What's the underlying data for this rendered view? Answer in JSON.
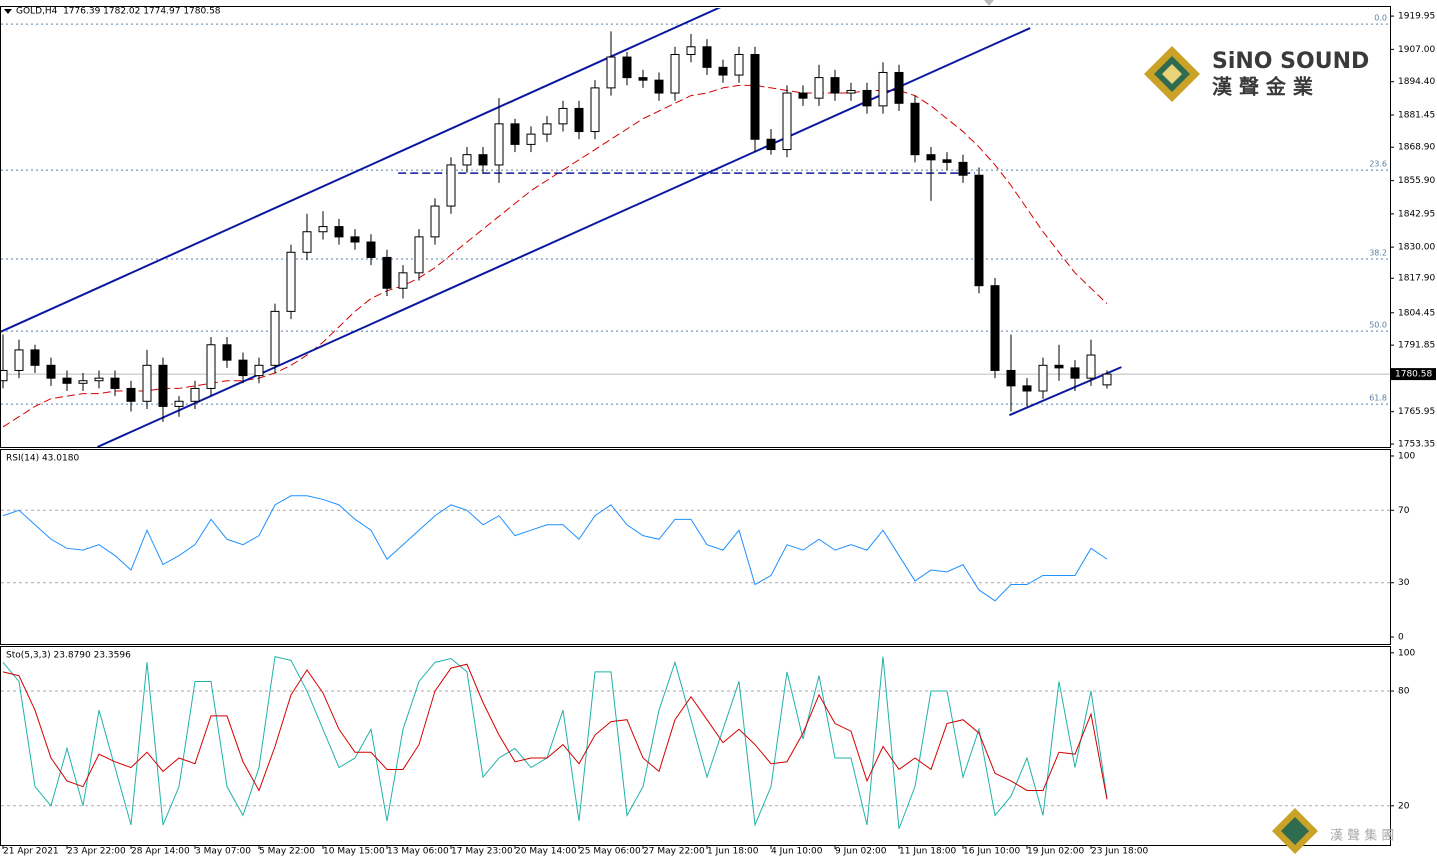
{
  "chart_data": [
    {
      "type": "candlestick",
      "title": "GOLD,H4  1776.39 1782.02 1774.97 1780.58",
      "categories": [
        "21 Apr 2021",
        null,
        null,
        null,
        "23 Apr 22:00",
        null,
        null,
        null,
        "28 Apr 14:00",
        null,
        null,
        null,
        "3 May 07:00",
        null,
        null,
        null,
        "5 May 22:00",
        null,
        null,
        null,
        "10 May 15:00",
        null,
        null,
        null,
        "13 May 06:00",
        null,
        null,
        null,
        "17 May 23:00",
        null,
        null,
        null,
        "20 May 14:00",
        null,
        null,
        null,
        "25 May 06:00",
        null,
        null,
        null,
        "27 May 22:00",
        null,
        null,
        null,
        "1 Jun 18:00",
        null,
        null,
        null,
        "4 Jun 10:00",
        null,
        null,
        null,
        "9 Jun 02:00",
        null,
        null,
        null,
        "11 Jun 18:00",
        null,
        null,
        null,
        "16 Jun 10:00",
        null,
        null,
        null,
        "19 Jun 02:00",
        null,
        null,
        null,
        "23 Jun 18:00",
        null
      ],
      "open": [
        1778,
        1782,
        1790,
        1784,
        1779,
        1777,
        1778,
        1779,
        1775,
        1770,
        1784,
        1768,
        1770,
        1775,
        1792,
        1786,
        1780,
        1784,
        1805,
        1828,
        1836,
        1838,
        1834,
        1832,
        1826,
        1814,
        1820,
        1834,
        1846,
        1862,
        1866,
        1862,
        1878,
        1870,
        1874,
        1878,
        1884,
        1875,
        1892,
        1904,
        1896,
        1895,
        1890,
        1905,
        1908,
        1900,
        1897,
        1905,
        1872,
        1868,
        1890,
        1888,
        1896,
        1890,
        1891,
        1885,
        1898,
        1886,
        1866,
        1864,
        1863,
        1858,
        1815,
        1782,
        1776,
        1774,
        1784,
        1783,
        1779,
        1776.39
      ],
      "high": [
        1796,
        1794,
        1792,
        1787,
        1782,
        1781,
        1782,
        1782,
        1778,
        1790,
        1787,
        1772,
        1778,
        1795,
        1795,
        1789,
        1787,
        1808,
        1831,
        1843,
        1844,
        1841,
        1837,
        1835,
        1829,
        1823,
        1837,
        1849,
        1865,
        1869,
        1869,
        1888,
        1880,
        1877,
        1881,
        1887,
        1887,
        1895,
        1914,
        1906,
        1899,
        1898,
        1908,
        1913,
        1911,
        1903,
        1908,
        1908,
        1876,
        1893,
        1893,
        1901,
        1899,
        1894,
        1894,
        1902,
        1901,
        1889,
        1869,
        1867,
        1866,
        1861,
        1818,
        1796,
        1779,
        1787,
        1792,
        1786,
        1794,
        1782.02
      ],
      "low": [
        1775,
        1779,
        1781,
        1776,
        1774,
        1774,
        1775,
        1772,
        1766,
        1767,
        1762,
        1764,
        1767,
        1772,
        1783,
        1777,
        1777,
        1781,
        1802,
        1825,
        1833,
        1831,
        1829,
        1823,
        1811,
        1810,
        1817,
        1831,
        1843,
        1859,
        1859,
        1855,
        1867,
        1867,
        1871,
        1875,
        1872,
        1872,
        1889,
        1893,
        1892,
        1887,
        1887,
        1902,
        1897,
        1894,
        1894,
        1867,
        1866,
        1865,
        1885,
        1885,
        1887,
        1887,
        1882,
        1882,
        1883,
        1863,
        1848,
        1860,
        1855,
        1812,
        1779,
        1766,
        1768,
        1771,
        1778,
        1774,
        1776,
        1774.97
      ],
      "close": [
        1782,
        1790,
        1784,
        1779,
        1777,
        1778,
        1779,
        1775,
        1770,
        1784,
        1768,
        1770,
        1775,
        1792,
        1786,
        1780,
        1784,
        1805,
        1828,
        1836,
        1838,
        1834,
        1832,
        1826,
        1814,
        1820,
        1834,
        1846,
        1862,
        1866,
        1862,
        1878,
        1870,
        1874,
        1878,
        1884,
        1875,
        1892,
        1904,
        1896,
        1895,
        1890,
        1905,
        1908,
        1900,
        1897,
        1905,
        1872,
        1868,
        1890,
        1888,
        1896,
        1890,
        1891,
        1885,
        1898,
        1886,
        1866,
        1864,
        1863,
        1858,
        1815,
        1782,
        1776,
        1774,
        1784,
        1783,
        1779,
        1788,
        1780.58
      ],
      "moving_average": {
        "color": "#d40000",
        "values": [
          1760,
          1764,
          1768,
          1771,
          1772,
          1773,
          1773,
          1774,
          1774,
          1774,
          1775,
          1775,
          1776,
          1777,
          1778,
          1778,
          1779,
          1781,
          1784,
          1788,
          1793,
          1799,
          1805,
          1810,
          1813,
          1815,
          1818,
          1822,
          1827,
          1832,
          1837,
          1842,
          1847,
          1852,
          1856,
          1860,
          1864,
          1868,
          1872,
          1876,
          1880,
          1883,
          1886,
          1889,
          1890,
          1892,
          1893,
          1893,
          1892,
          1891,
          1890,
          1890,
          1890,
          1890,
          1891,
          1891,
          1891,
          1889,
          1885,
          1880,
          1875,
          1869,
          1862,
          1854,
          1845,
          1836,
          1828,
          1820,
          1814,
          1808
        ]
      },
      "last_price": 1780.58,
      "fib_levels": [
        {
          "label": "0.0",
          "price": 1916.8
        },
        {
          "label": "23.6",
          "price": 1860.0
        },
        {
          "label": "38.2",
          "price": 1825.4
        },
        {
          "label": "50.0",
          "price": 1797.3
        },
        {
          "label": "61.8",
          "price": 1768.9
        }
      ],
      "trendlines": [
        {
          "color": "#0a1aa0",
          "x": [
            -0.2,
            45.4
          ],
          "y": [
            1796.9,
            1925.0
          ]
        },
        {
          "color": "#0a1aa0",
          "x": [
            5.9,
            64.2
          ],
          "y": [
            1752.2,
            1915.3
          ]
        },
        {
          "color": "#0a1aa0",
          "x": [
            24.7,
            60.75
          ],
          "y": [
            1858.8,
            1858.8
          ],
          "dashed": true
        },
        {
          "color": "#0a1aa0",
          "x": [
            62.9,
            69.9
          ],
          "y": [
            1764.6,
            1783.3
          ]
        }
      ],
      "ylim": [
        1752.2,
        1923.1
      ],
      "yticks": [
        1919.95,
        {
          "value": 1907,
          "label": "1907.00"
        },
        {
          "value": 1894.4,
          "label": "1894.40"
        },
        1881.45,
        {
          "value": 1868.9,
          "label": "1868.90"
        },
        {
          "value": 1855.9,
          "label": "1855.90"
        },
        1842.95,
        {
          "value": 1830,
          "label": "1830.00"
        },
        {
          "value": 1817.9,
          "label": "1817.90"
        },
        1804.45,
        1791.85,
        1765.95,
        1753.35
      ]
    },
    {
      "type": "line",
      "title": "RSI(14) 43.0180",
      "series": [
        {
          "color": "#1e90ff",
          "values": [
            67,
            70,
            62,
            54,
            49,
            48,
            51,
            45,
            37,
            59,
            40,
            45,
            51,
            65,
            54,
            51,
            56,
            73,
            78,
            78,
            76,
            73,
            65,
            59,
            43,
            51,
            59,
            67,
            73,
            70,
            62,
            67,
            56,
            59,
            62,
            62,
            54,
            67,
            73,
            62,
            56,
            54,
            65,
            65,
            51,
            48,
            59,
            29,
            34,
            51,
            48,
            54,
            48,
            51,
            48,
            59,
            45,
            31,
            37,
            36,
            40,
            26,
            20,
            29,
            29,
            34,
            34,
            34,
            49,
            43.018
          ]
        }
      ],
      "levels": [
        70,
        30
      ],
      "ylim": [
        -4.4,
        103.3
      ],
      "yticks": [
        100,
        70,
        30,
        0
      ]
    },
    {
      "type": "line",
      "title": "Sto(5,3,3) 23.8790 23.3596",
      "series": [
        {
          "color": "#20b2aa",
          "values": [
            95,
            85,
            30,
            20,
            50,
            20,
            70,
            40,
            10,
            95,
            10,
            30,
            85,
            85,
            30,
            15,
            40,
            98,
            96,
            80,
            60,
            40,
            45,
            60,
            12,
            60,
            85,
            95,
            97,
            90,
            35,
            45,
            50,
            40,
            45,
            70,
            12,
            90,
            90,
            15,
            30,
            70,
            95,
            65,
            35,
            60,
            85,
            10,
            30,
            90,
            55,
            88,
            45,
            45,
            10,
            98,
            8,
            30,
            80,
            80,
            35,
            60,
            15,
            25,
            45,
            15,
            85,
            40,
            80,
            23.879
          ]
        },
        {
          "color": "#d40000",
          "values": [
            90,
            88,
            70,
            45,
            33,
            30,
            47,
            43,
            40,
            48,
            38,
            45,
            42,
            67,
            67,
            43,
            28,
            51,
            78,
            91,
            79,
            60,
            48,
            48,
            39,
            39,
            52,
            80,
            92,
            94,
            74,
            57,
            43,
            45,
            45,
            52,
            42,
            57,
            64,
            65,
            45,
            38,
            65,
            77,
            65,
            53,
            60,
            52,
            42,
            43,
            58,
            78,
            63,
            59,
            33,
            51,
            39,
            45,
            39,
            63,
            65,
            58,
            37,
            33,
            28,
            28,
            48,
            47,
            68,
            23.3596
          ]
        }
      ],
      "levels": [
        80,
        20
      ],
      "ylim": [
        -0.5,
        102.5
      ],
      "yticks": [
        100,
        80,
        20
      ]
    }
  ],
  "logo": {
    "name": "SiNO SOUND",
    "chinese": "漢 聲 金 業",
    "footer": "漢 聲 集 團"
  }
}
